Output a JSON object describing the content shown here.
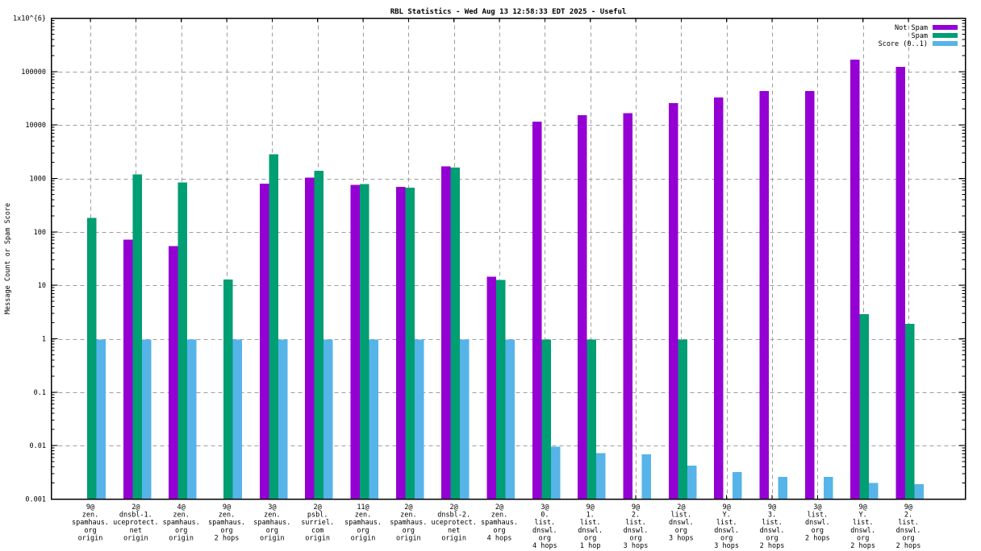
{
  "window": {
    "background": "#ffffff"
  },
  "chart_data": {
    "type": "bar",
    "title": "RBL Statistics - Wed Aug 13 12:58:33 EDT 2025 - Useful",
    "xlabel": "",
    "ylabel": "Message Count or Spam Score",
    "y_scale": "log10",
    "ylim": [
      0.001,
      1000000
    ],
    "y_tick_labels": [
      "1x10^{6}",
      "100000",
      "10000",
      "1000",
      "100",
      "10",
      "1",
      "0.1",
      "0.01",
      "0.001"
    ],
    "grid": true,
    "legend_position": "top-right-inside",
    "categories": [
      [
        "9@",
        "zen.",
        "spamhaus.",
        "org",
        "origin"
      ],
      [
        "2@",
        "dnsbl-1.",
        "uceprotect.",
        "net",
        "origin"
      ],
      [
        "4@",
        "zen.",
        "spamhaus.",
        "org",
        "origin"
      ],
      [
        "9@",
        "zen.",
        "spamhaus.",
        "org",
        "2 hops"
      ],
      [
        "3@",
        "zen.",
        "spamhaus.",
        "org",
        "origin"
      ],
      [
        "2@",
        "psbl.",
        "surriel.",
        "com",
        "origin"
      ],
      [
        "11@",
        "zen.",
        "spamhaus.",
        "org",
        "origin"
      ],
      [
        "2@",
        "zen.",
        "spamhaus.",
        "org",
        "origin"
      ],
      [
        "2@",
        "dnsbl-2.",
        "uceprotect.",
        "net",
        "origin"
      ],
      [
        "2@",
        "zen.",
        "spamhaus.",
        "org",
        "4 hops"
      ],
      [
        "3@",
        "0.",
        "list.",
        "dnswl.",
        "org",
        "4 hops"
      ],
      [
        "9@",
        "1.",
        "list.",
        "dnswl.",
        "org",
        "1 hop"
      ],
      [
        "9@",
        "2.",
        "list.",
        "dnswl.",
        "org",
        "3 hops"
      ],
      [
        "2@",
        "list.",
        "dnswl.",
        "org",
        "3 hops"
      ],
      [
        "9@",
        "Y.",
        "list.",
        "dnswl.",
        "org",
        "3 hops"
      ],
      [
        "9@",
        "3.",
        "list.",
        "dnswl.",
        "org",
        "2 hops"
      ],
      [
        "3@",
        "list.",
        "dnswl.",
        "org",
        "2 hops"
      ],
      [
        "9@",
        "Y.",
        "list.",
        "dnswl.",
        "org",
        "2 hops"
      ],
      [
        "9@",
        "2.",
        "list.",
        "dnswl.",
        "org",
        "2 hops"
      ]
    ],
    "series": [
      {
        "name": "Not Spam",
        "color": "#9400D3",
        "values": [
          null,
          71,
          54,
          null,
          800,
          1040,
          760,
          690,
          1690,
          14.5,
          11500,
          15200,
          16500,
          25500,
          33000,
          43500,
          43500,
          166000,
          122000
        ]
      },
      {
        "name": "Spam",
        "color": "#009E73",
        "values": [
          183,
          1190,
          840,
          12.8,
          2840,
          1400,
          790,
          670,
          1610,
          12.6,
          0.97,
          0.97,
          null,
          0.97,
          null,
          null,
          null,
          2.9,
          1.9
        ]
      },
      {
        "name": "Score (0..1)",
        "color": "#56B4E9",
        "values": [
          0.97,
          0.97,
          0.97,
          0.97,
          0.97,
          0.97,
          0.97,
          0.97,
          0.97,
          0.97,
          0.0095,
          0.0072,
          0.0069,
          0.0042,
          0.0032,
          0.0026,
          0.0026,
          0.002,
          0.0019
        ]
      }
    ]
  }
}
